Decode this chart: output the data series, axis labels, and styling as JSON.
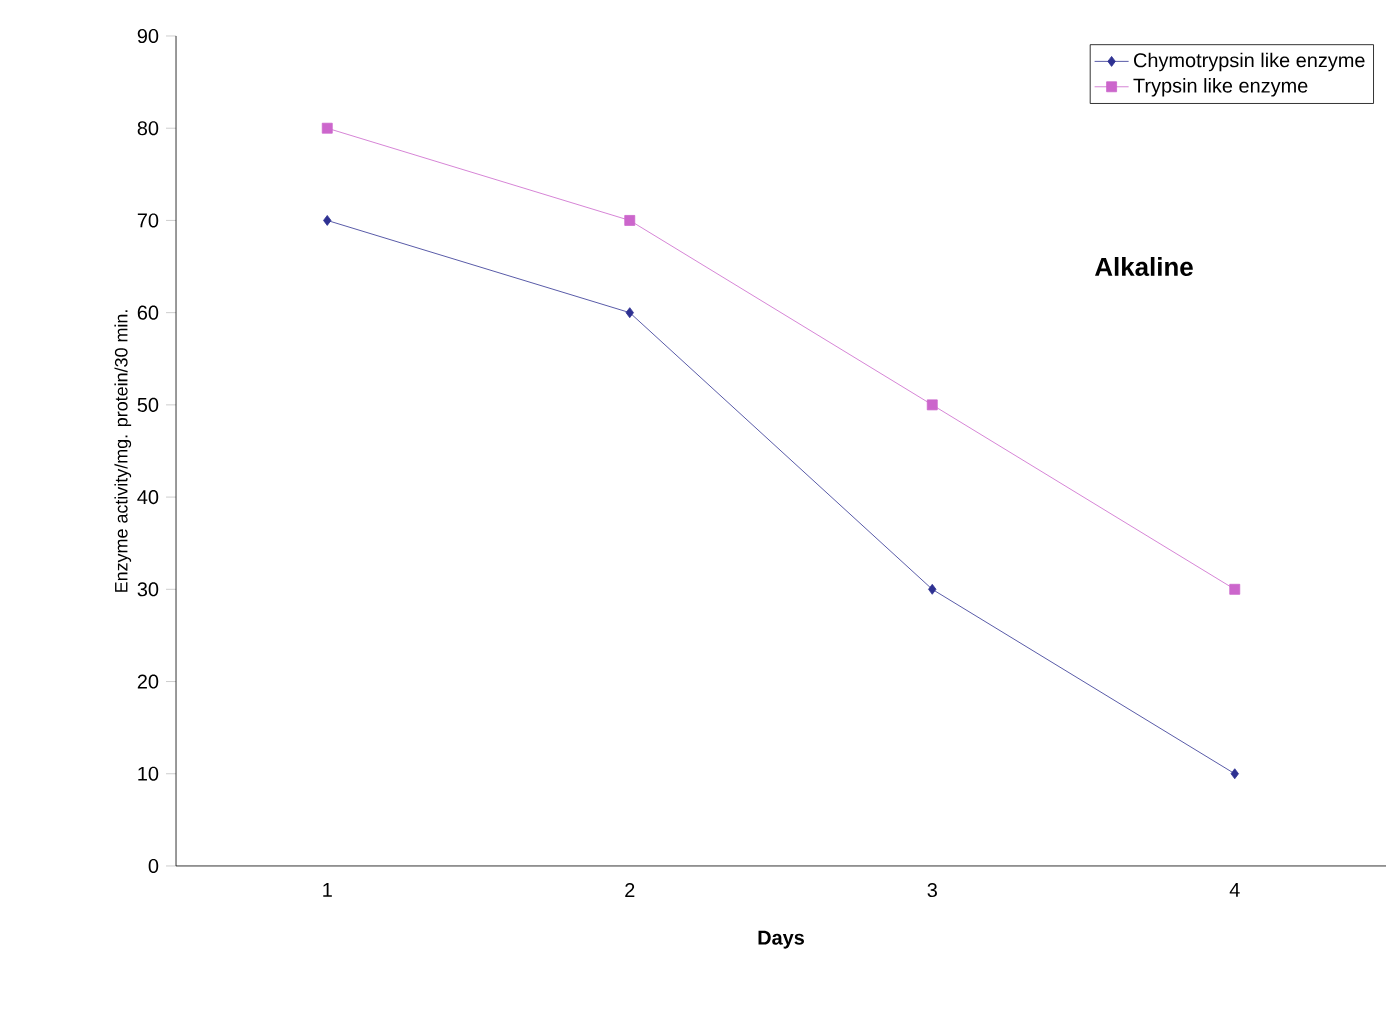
{
  "chart_data": {
    "type": "line",
    "xlabel": "Days",
    "ylabel": "Enzyme activity/mg. protein/30 min.",
    "categories": [
      "1",
      "2",
      "3",
      "4"
    ],
    "series": [
      {
        "name": "Chymotrypsin like enzyme",
        "color": "#2e3192",
        "marker": "diamond",
        "values": [
          70,
          60,
          30,
          10
        ]
      },
      {
        "name": "Trypsin like enzyme",
        "color": "#cc66cc",
        "marker": "square",
        "values": [
          80,
          70,
          50,
          30
        ]
      }
    ],
    "ylim": [
      0,
      90
    ],
    "yticks": [
      0,
      10,
      20,
      30,
      40,
      50,
      60,
      70,
      80,
      90
    ],
    "legend": "top right",
    "grid": false,
    "line_style": "solid",
    "annotations": [
      "**Alkaline**"
    ]
  }
}
